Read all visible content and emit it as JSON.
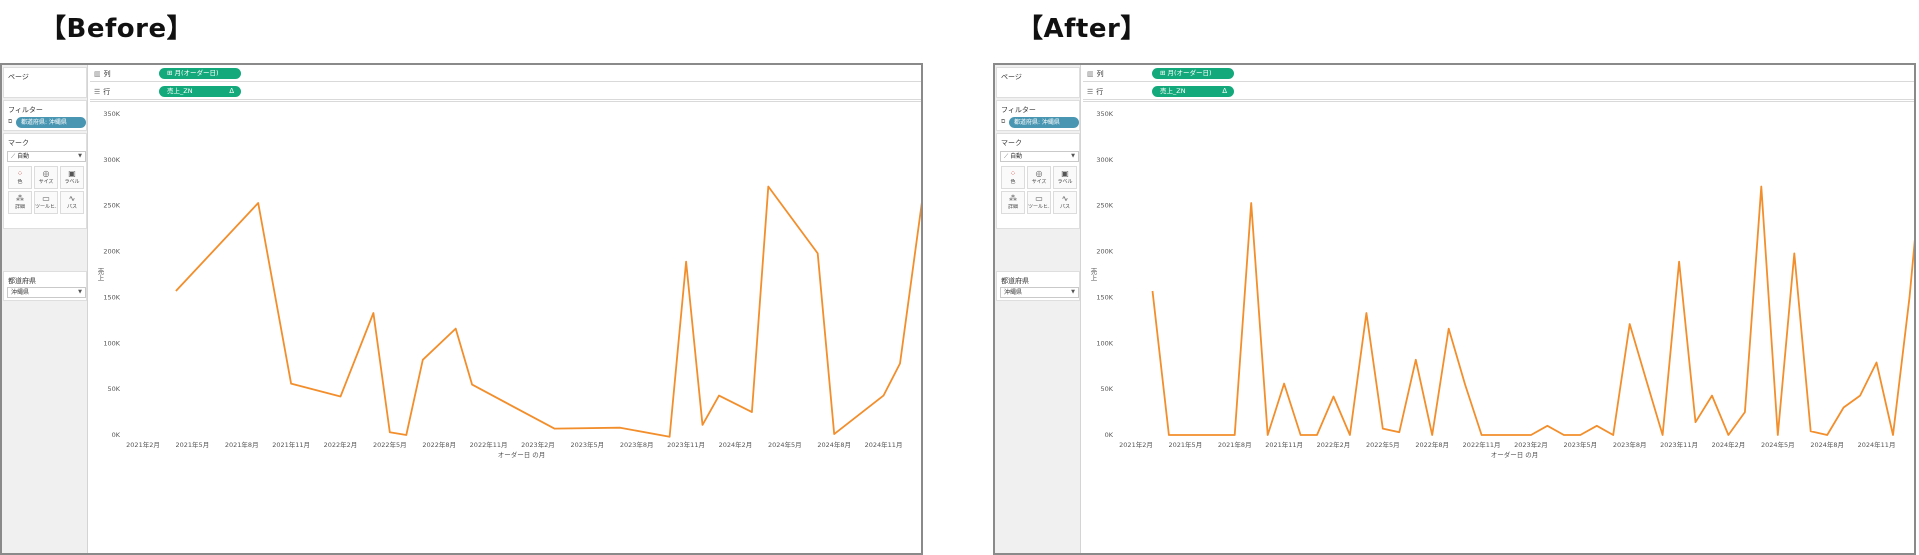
{
  "panels": [
    {
      "id": "before",
      "heading": "【Before】",
      "left_panel": {
        "pages_title": "ページ",
        "filters_title": "フィルター",
        "filter_pill": "都道府県: 沖縄県",
        "marks_title": "マーク",
        "mark_type": "自動",
        "mark_buttons": [
          {
            "label": "色",
            "icon": "color-icon"
          },
          {
            "label": "サイズ",
            "icon": "size-icon"
          },
          {
            "label": "ラベル",
            "icon": "label-icon"
          },
          {
            "label": "詳細",
            "icon": "detail-icon"
          },
          {
            "label": "ツールヒ...",
            "icon": "tooltip-icon"
          },
          {
            "label": "パス",
            "icon": "path-icon"
          }
        ],
        "param_title": "都道府県",
        "param_value": "沖縄県"
      },
      "shelves": {
        "columns_label": "列",
        "columns_pill": "月(オーダー日)",
        "rows_label": "行",
        "rows_pill": "売上_ZN",
        "rows_pill_delta": "Δ"
      },
      "chart_data": {
        "type": "line",
        "xlabel": "オーダー日 の月",
        "ylabel": "売上",
        "yticks": [
          "0K",
          "50K",
          "100K",
          "150K",
          "200K",
          "250K",
          "300K",
          "350K"
        ],
        "ylim": [
          0,
          350000
        ],
        "xticks": [
          "2021年2月",
          "2021年5月",
          "2021年8月",
          "2021年11月",
          "2022年2月",
          "2022年5月",
          "2022年8月",
          "2022年11月",
          "2023年2月",
          "2023年5月",
          "2023年8月",
          "2023年11月",
          "2024年2月",
          "2024年5月",
          "2024年8月",
          "2024年11月"
        ],
        "x_range": [
          0,
          46
        ],
        "line_color": "#f28e2b",
        "points": [
          [
            2,
            157000
          ],
          [
            7,
            253000
          ],
          [
            9,
            56000
          ],
          [
            12,
            42000
          ],
          [
            14,
            133000
          ],
          [
            15,
            3000
          ],
          [
            16,
            0
          ],
          [
            17,
            82000
          ],
          [
            19,
            116000
          ],
          [
            20,
            55000
          ],
          [
            25,
            7000
          ],
          [
            29,
            8000
          ],
          [
            32,
            -2000
          ],
          [
            33,
            189000
          ],
          [
            34,
            11000
          ],
          [
            35,
            43000
          ],
          [
            37,
            25000
          ],
          [
            38,
            271000
          ],
          [
            41,
            198000
          ],
          [
            42,
            1000
          ],
          [
            45,
            43000
          ],
          [
            46,
            78000
          ],
          [
            48,
            342000
          ]
        ]
      }
    },
    {
      "id": "after",
      "heading": "【After】",
      "left_panel": {
        "pages_title": "ページ",
        "filters_title": "フィルター",
        "filter_pill": "都道府県: 沖縄県",
        "marks_title": "マーク",
        "mark_type": "自動",
        "mark_buttons": [
          {
            "label": "色",
            "icon": "color-icon"
          },
          {
            "label": "サイズ",
            "icon": "size-icon"
          },
          {
            "label": "ラベル",
            "icon": "label-icon"
          },
          {
            "label": "詳細",
            "icon": "detail-icon"
          },
          {
            "label": "ツールヒ...",
            "icon": "tooltip-icon"
          },
          {
            "label": "パス",
            "icon": "path-icon"
          }
        ],
        "param_title": "都道府県",
        "param_value": "沖縄県"
      },
      "shelves": {
        "columns_label": "列",
        "columns_pill": "月(オーダー日)",
        "rows_label": "行",
        "rows_pill": "売上_ZN",
        "rows_pill_delta": "Δ"
      },
      "chart_data": {
        "type": "line",
        "xlabel": "オーダー日 の月",
        "ylabel": "売上",
        "yticks": [
          "0K",
          "50K",
          "100K",
          "150K",
          "200K",
          "250K",
          "300K",
          "350K"
        ],
        "ylim": [
          0,
          350000
        ],
        "xticks": [
          "2021年2月",
          "2021年5月",
          "2021年8月",
          "2021年11月",
          "2022年2月",
          "2022年5月",
          "2022年8月",
          "2022年11月",
          "2023年2月",
          "2023年5月",
          "2023年8月",
          "2023年11月",
          "2024年2月",
          "2024年5月",
          "2024年8月",
          "2024年11月"
        ],
        "x_range": [
          0,
          46
        ],
        "line_color": "#f28e2b",
        "points": [
          [
            1,
            157000
          ],
          [
            2,
            0
          ],
          [
            3,
            0
          ],
          [
            4,
            0
          ],
          [
            5,
            0
          ],
          [
            6,
            0
          ],
          [
            7,
            253000
          ],
          [
            8,
            0
          ],
          [
            9,
            56000
          ],
          [
            10,
            0
          ],
          [
            11,
            0
          ],
          [
            12,
            42000
          ],
          [
            13,
            0
          ],
          [
            14,
            133000
          ],
          [
            15,
            7000
          ],
          [
            16,
            3000
          ],
          [
            17,
            82000
          ],
          [
            18,
            0
          ],
          [
            19,
            116000
          ],
          [
            20,
            55000
          ],
          [
            21,
            0
          ],
          [
            22,
            0
          ],
          [
            23,
            0
          ],
          [
            24,
            0
          ],
          [
            25,
            10000
          ],
          [
            26,
            0
          ],
          [
            27,
            0
          ],
          [
            28,
            10000
          ],
          [
            29,
            0
          ],
          [
            30,
            121000
          ],
          [
            31,
            60000
          ],
          [
            32,
            0
          ],
          [
            33,
            189000
          ],
          [
            34,
            14000
          ],
          [
            35,
            43000
          ],
          [
            36,
            0
          ],
          [
            37,
            25000
          ],
          [
            38,
            271000
          ],
          [
            39,
            0
          ],
          [
            40,
            198000
          ],
          [
            41,
            4000
          ],
          [
            42,
            0
          ],
          [
            43,
            30000
          ],
          [
            44,
            43000
          ],
          [
            45,
            79000
          ],
          [
            46,
            0
          ],
          [
            47,
            150000
          ],
          [
            48,
            342000
          ]
        ]
      }
    }
  ]
}
